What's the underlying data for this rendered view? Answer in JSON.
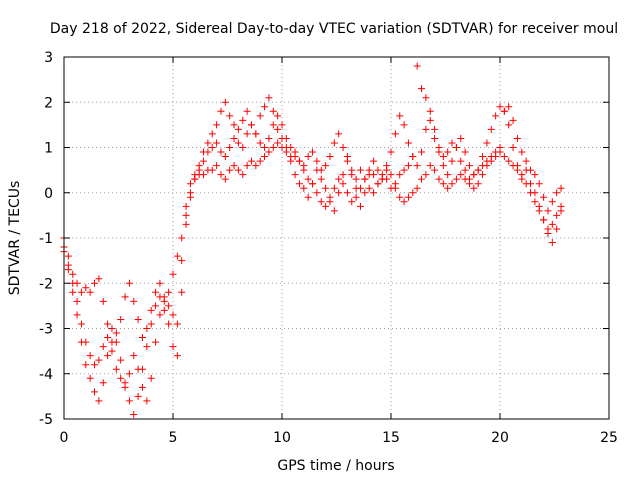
{
  "chart_data": {
    "type": "scatter",
    "title": "Day 218 of 2022, Sidereal Day-to-day VTEC variation (SDTVAR) for receiver moul",
    "xlabel": "GPS time / hours",
    "ylabel": "SDTVAR / TECUs",
    "xlim": [
      0,
      25
    ],
    "ylim": [
      -5,
      3
    ],
    "xticks": [
      0,
      5,
      10,
      15,
      20,
      25
    ],
    "yticks": [
      -5,
      -4,
      -3,
      -2,
      -1,
      0,
      1,
      2,
      3
    ],
    "grid": true,
    "marker": "plus",
    "color": "#ff0000",
    "series": [
      {
        "x": [
          0.0,
          0.2,
          0.4,
          0.6,
          0.8,
          1.0,
          1.2,
          1.4,
          1.6,
          1.8,
          2.0,
          2.2,
          2.4,
          2.6,
          2.8,
          3.0,
          3.2,
          3.4,
          3.6,
          3.8,
          4.0,
          4.2,
          4.4,
          4.6,
          4.8,
          5.0,
          5.2,
          5.4,
          5.6,
          5.8,
          6.0,
          6.2,
          6.4,
          6.6,
          6.8,
          7.0,
          7.2,
          7.4,
          7.6,
          7.8,
          8.0,
          8.2,
          8.4,
          8.6,
          8.8,
          9.0,
          9.2,
          9.4,
          9.6,
          9.8,
          10.0,
          10.2,
          10.4,
          10.6,
          10.8,
          11.0,
          11.2,
          11.4,
          11.6,
          11.8,
          12.0,
          12.2,
          12.4,
          12.6,
          12.8,
          13.0,
          13.2,
          13.4,
          13.6,
          13.8,
          14.0,
          14.2,
          14.4,
          14.6,
          14.8,
          15.0,
          15.2,
          15.4,
          15.6,
          15.8,
          16.0,
          16.2,
          16.4,
          16.6,
          16.8,
          17.0,
          17.2,
          17.4,
          17.6,
          17.8,
          18.0,
          18.2,
          18.4,
          18.6,
          18.8,
          19.0,
          19.2,
          19.4,
          19.6,
          19.8,
          20.0,
          20.2,
          20.4,
          20.6,
          20.8,
          21.0,
          21.2,
          21.4,
          21.6,
          21.8,
          22.0,
          22.2,
          22.4,
          22.6,
          22.8
        ],
        "y": [
          -1.2,
          -1.6,
          -2.2,
          -2.7,
          -3.3,
          -3.8,
          -4.1,
          -4.4,
          -4.6,
          -4.2,
          -3.6,
          -3.0,
          -3.3,
          -3.7,
          -4.2,
          -4.6,
          -4.9,
          -4.5,
          -3.9,
          -3.4,
          -2.9,
          -2.5,
          -2.3,
          -2.6,
          -2.2,
          -1.8,
          -1.4,
          -1.0,
          -0.5,
          -0.1,
          0.3,
          0.6,
          0.9,
          1.1,
          1.3,
          1.5,
          1.8,
          2.0,
          1.7,
          1.5,
          1.4,
          1.6,
          1.8,
          1.5,
          1.3,
          1.7,
          1.9,
          2.1,
          1.8,
          1.4,
          1.2,
          1.0,
          0.7,
          0.4,
          0.2,
          0.1,
          -0.1,
          0.2,
          0.5,
          0.3,
          0.1,
          -0.2,
          -0.4,
          0.0,
          0.4,
          0.8,
          0.5,
          0.1,
          -0.3,
          0.0,
          0.4,
          0.7,
          0.5,
          0.3,
          0.6,
          0.9,
          1.3,
          1.7,
          1.5,
          1.1,
          0.8,
          0.6,
          0.9,
          1.4,
          1.6,
          1.2,
          0.9,
          0.6,
          0.4,
          0.7,
          1.0,
          1.2,
          0.9,
          0.6,
          0.4,
          0.5,
          0.8,
          1.1,
          1.4,
          1.7,
          1.9,
          1.8,
          1.5,
          1.0,
          0.6,
          0.3,
          0.5,
          0.2,
          0.0,
          -0.3,
          -0.6,
          -0.9,
          -1.1,
          -0.8,
          -0.4
        ]
      },
      {
        "x": [
          0.0,
          0.2,
          0.4,
          0.6,
          0.8,
          1.0,
          1.2,
          1.4,
          1.6,
          1.8,
          2.0,
          2.2,
          2.4,
          2.6,
          2.8,
          3.0,
          3.2,
          3.4,
          3.6,
          3.8,
          4.0,
          4.2,
          4.4,
          4.6,
          4.8,
          5.0,
          5.2,
          5.4,
          5.6,
          5.8,
          6.0,
          6.2,
          6.4,
          6.6,
          6.8,
          7.0,
          7.2,
          7.4,
          7.6,
          7.8,
          8.0,
          8.2,
          8.4,
          8.6,
          8.8,
          9.0,
          9.2,
          9.4,
          9.6,
          9.8,
          10.0,
          10.2,
          10.4,
          10.6,
          10.8,
          11.0,
          11.2,
          11.4,
          11.6,
          11.8,
          12.0,
          12.2,
          12.4,
          12.6,
          12.8,
          13.0,
          13.2,
          13.4,
          13.6,
          13.8,
          14.0,
          14.2,
          14.4,
          14.6,
          14.8,
          15.0,
          15.2,
          15.4,
          15.6,
          15.8,
          16.0,
          16.2,
          16.4,
          16.6,
          16.8,
          17.0,
          17.2,
          17.4,
          17.6,
          17.8,
          18.0,
          18.2,
          18.4,
          18.6,
          18.8,
          19.0,
          19.2,
          19.4,
          19.6,
          19.8,
          20.0,
          20.2,
          20.4,
          20.6,
          20.8,
          21.0,
          21.2,
          21.4,
          21.6,
          21.8,
          22.0,
          22.2,
          22.4,
          22.6,
          22.8
        ],
        "y": [
          -1.0,
          -1.4,
          -1.8,
          -2.0,
          -2.2,
          -2.1,
          -2.2,
          -2.0,
          -1.9,
          -2.4,
          -2.9,
          -3.3,
          -3.1,
          -2.8,
          -2.3,
          -2.0,
          -2.4,
          -2.8,
          -3.2,
          -3.0,
          -2.6,
          -2.2,
          -2.0,
          -2.3,
          -2.9,
          -3.4,
          -3.6,
          -1.5,
          -0.7,
          0.0,
          0.4,
          0.5,
          0.7,
          0.9,
          1.0,
          1.1,
          0.9,
          0.8,
          1.0,
          1.2,
          1.1,
          1.0,
          1.3,
          1.5,
          1.3,
          1.1,
          1.0,
          1.2,
          1.5,
          1.7,
          1.5,
          1.2,
          1.0,
          0.9,
          0.7,
          0.6,
          0.8,
          0.9,
          0.7,
          0.5,
          0.6,
          0.8,
          1.1,
          1.3,
          1.0,
          0.7,
          0.4,
          0.3,
          0.5,
          0.3,
          0.1,
          0.0,
          0.2,
          0.4,
          0.3,
          0.1,
          0.2,
          0.4,
          0.5,
          0.6,
          0.8,
          2.8,
          2.3,
          2.1,
          1.8,
          1.4,
          1.0,
          0.8,
          0.9,
          1.1,
          1.0,
          0.7,
          0.5,
          0.3,
          0.4,
          0.5,
          0.6,
          0.7,
          0.8,
          0.9,
          1.0,
          1.8,
          1.9,
          1.6,
          1.2,
          0.9,
          0.7,
          0.5,
          0.4,
          0.2,
          -0.1,
          -0.4,
          -0.2,
          0.0,
          0.1
        ]
      },
      {
        "x": [
          0.0,
          0.2,
          0.4,
          0.6,
          0.8,
          1.0,
          1.2,
          1.4,
          1.6,
          1.8,
          2.0,
          2.2,
          2.4,
          2.6,
          2.8,
          3.0,
          3.2,
          3.4,
          3.6,
          3.8,
          4.0,
          4.2,
          4.4,
          4.6,
          4.8,
          5.0,
          5.2,
          5.4,
          5.6,
          5.8,
          6.0,
          6.2,
          6.4,
          6.6,
          6.8,
          7.0,
          7.2,
          7.4,
          7.6,
          7.8,
          8.0,
          8.2,
          8.4,
          8.6,
          8.8,
          9.0,
          9.2,
          9.4,
          9.6,
          9.8,
          10.0,
          10.2,
          10.4,
          10.6,
          10.8,
          11.0,
          11.2,
          11.4,
          11.6,
          11.8,
          12.0,
          12.2,
          12.4,
          12.6,
          12.8,
          13.0,
          13.2,
          13.4,
          13.6,
          13.8,
          14.0,
          14.2,
          14.4,
          14.6,
          14.8,
          15.0,
          15.2,
          15.4,
          15.6,
          15.8,
          16.0,
          16.2,
          16.4,
          16.6,
          16.8,
          17.0,
          17.2,
          17.4,
          17.6,
          17.8,
          18.0,
          18.2,
          18.4,
          18.6,
          18.8,
          19.0,
          19.2,
          19.4,
          19.6,
          19.8,
          20.0,
          20.2,
          20.4,
          20.6,
          20.8,
          21.0,
          21.2,
          21.4,
          21.6,
          21.8,
          22.0,
          22.2,
          22.4,
          22.6,
          22.8
        ],
        "y": [
          -1.3,
          -1.7,
          -2.0,
          -2.4,
          -2.9,
          -3.3,
          -3.6,
          -3.8,
          -3.7,
          -3.4,
          -3.2,
          -3.5,
          -3.9,
          -4.1,
          -4.3,
          -4.0,
          -3.6,
          -3.9,
          -4.3,
          -4.6,
          -4.1,
          -3.3,
          -2.7,
          -2.4,
          -2.5,
          -2.7,
          -2.9,
          -2.2,
          -0.3,
          0.2,
          0.3,
          0.4,
          0.4,
          0.5,
          0.5,
          0.6,
          0.4,
          0.3,
          0.5,
          0.6,
          0.5,
          0.4,
          0.6,
          0.7,
          0.6,
          0.7,
          0.8,
          0.9,
          1.0,
          1.1,
          1.0,
          0.9,
          0.8,
          0.8,
          0.7,
          0.5,
          0.3,
          0.2,
          0.0,
          -0.2,
          -0.3,
          -0.1,
          0.1,
          0.3,
          0.2,
          0.0,
          -0.2,
          -0.1,
          0.1,
          0.3,
          0.5,
          0.4,
          0.2,
          0.3,
          0.5,
          0.4,
          0.1,
          -0.1,
          -0.2,
          -0.1,
          0.0,
          0.1,
          0.3,
          0.4,
          0.6,
          0.5,
          0.3,
          0.2,
          0.1,
          0.2,
          0.3,
          0.4,
          0.3,
          0.2,
          0.1,
          0.2,
          0.4,
          0.6,
          0.7,
          0.8,
          0.9,
          0.8,
          0.7,
          0.6,
          0.5,
          0.4,
          0.2,
          0.0,
          -0.2,
          -0.4,
          -0.6,
          -0.8,
          -0.7,
          -0.5,
          -0.3
        ]
      }
    ]
  }
}
